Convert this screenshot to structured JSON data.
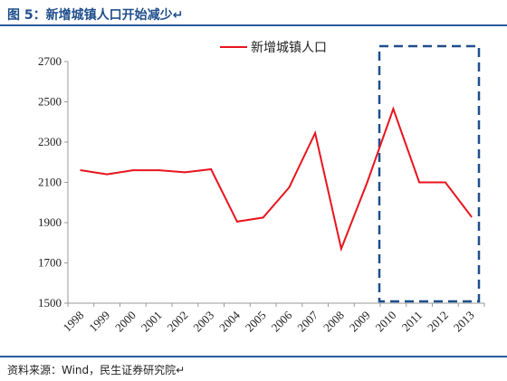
{
  "page": {
    "title": "图 5：新增城镇人口开始减少↵",
    "source": "资料来源：Wind，民生证券研究院↵"
  },
  "colors": {
    "series": "#e8141e",
    "frame": "#1f4e8c",
    "axis": "#9a9a9a"
  },
  "chart_data": {
    "type": "line",
    "x": [
      "1998",
      "1999",
      "2000",
      "2001",
      "2002",
      "2003",
      "2004",
      "2005",
      "2006",
      "2007",
      "2008",
      "2009",
      "2010",
      "2011",
      "2012",
      "2013"
    ],
    "series": [
      {
        "name": "新增城镇人口",
        "values": [
          2160,
          2140,
          2160,
          2160,
          2150,
          2165,
          1905,
          1925,
          2075,
          2345,
          1770,
          2100,
          2465,
          2100,
          2100,
          1930
        ]
      }
    ],
    "ylim": [
      1500,
      2700
    ],
    "yticks": [
      1500,
      1700,
      1900,
      2100,
      2300,
      2500,
      2700
    ],
    "legend_position": "top-center",
    "grid": false,
    "highlight_range": [
      "2010",
      "2013"
    ]
  }
}
